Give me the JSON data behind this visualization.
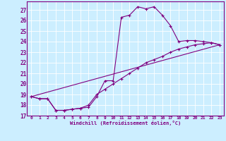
{
  "xlabel": "Windchill (Refroidissement éolien,°C)",
  "background_color": "#cceeff",
  "line_color": "#800080",
  "grid_color": "#ffffff",
  "xlim": [
    -0.5,
    23.5
  ],
  "ylim": [
    17,
    27.8
  ],
  "yticks": [
    17,
    18,
    19,
    20,
    21,
    22,
    23,
    24,
    25,
    26,
    27
  ],
  "xticks": [
    0,
    1,
    2,
    3,
    4,
    5,
    6,
    7,
    8,
    9,
    10,
    11,
    12,
    13,
    14,
    15,
    16,
    17,
    18,
    19,
    20,
    21,
    22,
    23
  ],
  "series1_x": [
    0,
    1,
    2,
    3,
    4,
    5,
    6,
    7,
    8,
    9,
    10,
    11,
    12,
    13,
    14,
    15,
    16,
    17,
    18,
    19,
    20,
    21,
    22,
    23
  ],
  "series1_y": [
    18.8,
    18.6,
    18.6,
    17.5,
    17.5,
    17.6,
    17.7,
    17.8,
    18.8,
    20.3,
    20.3,
    26.3,
    26.5,
    27.3,
    27.1,
    27.3,
    26.5,
    25.5,
    24.0,
    24.1,
    24.1,
    24.0,
    23.9,
    23.7
  ],
  "series2_x": [
    0,
    1,
    2,
    3,
    4,
    5,
    6,
    7,
    8,
    9,
    10,
    11,
    12,
    13,
    14,
    15,
    16,
    17,
    18,
    19,
    20,
    21,
    22,
    23
  ],
  "series2_y": [
    18.8,
    18.6,
    18.6,
    17.5,
    17.5,
    17.6,
    17.7,
    18.0,
    19.0,
    19.5,
    20.0,
    20.5,
    21.0,
    21.5,
    22.0,
    22.3,
    22.6,
    23.0,
    23.3,
    23.5,
    23.7,
    23.8,
    23.9,
    23.7
  ],
  "series3_x": [
    0,
    23
  ],
  "series3_y": [
    18.8,
    23.7
  ]
}
